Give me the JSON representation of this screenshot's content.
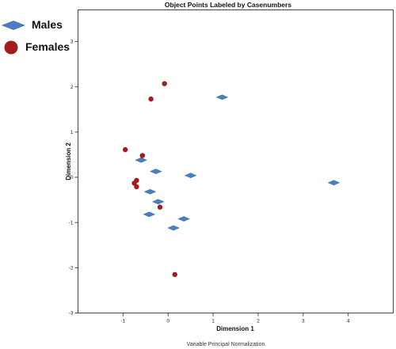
{
  "chart_data": {
    "type": "scatter",
    "title": "Object Points Labeled by Casenumbers",
    "xlabel": "Dimension 1",
    "ylabel": "Dimension 2",
    "footnote": "Variable Principal Normalization.",
    "xlim": [
      -2,
      5
    ],
    "ylim": [
      -3,
      3.7
    ],
    "xticks": [
      -1,
      0,
      1,
      2,
      3,
      4
    ],
    "yticks": [
      -3,
      -2,
      -1,
      0,
      1,
      2,
      3
    ],
    "grid": false,
    "legend_position": "top-left-outside",
    "series": [
      {
        "name": "Males",
        "marker": "diamond",
        "color": "#4a7fc1",
        "points": [
          {
            "x": 1.2,
            "y": 1.77
          },
          {
            "x": 3.68,
            "y": -0.12
          },
          {
            "x": 0.5,
            "y": 0.04
          },
          {
            "x": -0.27,
            "y": 0.13
          },
          {
            "x": -0.6,
            "y": 0.38
          },
          {
            "x": -0.4,
            "y": -0.32
          },
          {
            "x": -0.22,
            "y": -0.54
          },
          {
            "x": -0.42,
            "y": -0.82
          },
          {
            "x": 0.35,
            "y": -0.92
          },
          {
            "x": 0.12,
            "y": -1.12
          }
        ]
      },
      {
        "name": "Females",
        "marker": "circle",
        "color": "#a31b1b",
        "points": [
          {
            "x": -0.08,
            "y": 2.07
          },
          {
            "x": -0.38,
            "y": 1.73
          },
          {
            "x": -0.95,
            "y": 0.61
          },
          {
            "x": -0.57,
            "y": 0.48
          },
          {
            "x": -0.7,
            "y": -0.07
          },
          {
            "x": -0.75,
            "y": -0.13
          },
          {
            "x": -0.7,
            "y": -0.21
          },
          {
            "x": -0.18,
            "y": -0.66
          },
          {
            "x": 0.15,
            "y": -2.15
          }
        ]
      }
    ]
  }
}
